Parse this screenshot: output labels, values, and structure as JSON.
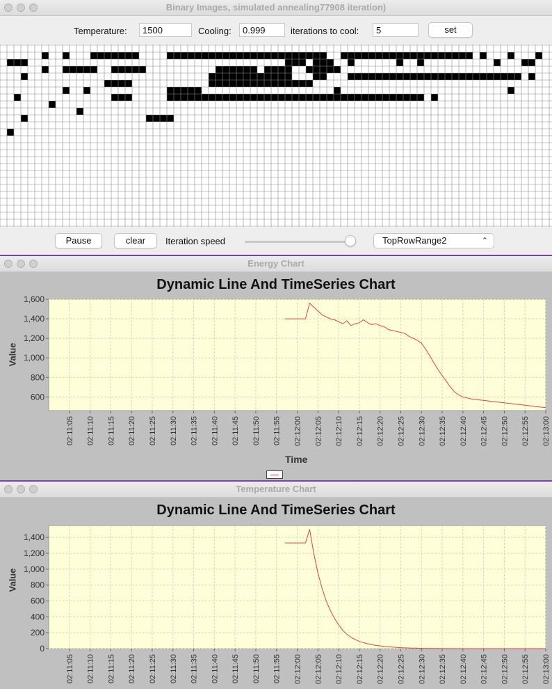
{
  "main_window": {
    "title": "Binary Images, simulated annealing77908 iteration)",
    "temperature_label": "Temperature:",
    "temperature_value": "1500",
    "cooling_label": "Cooling:",
    "cooling_value": "0.999",
    "iterations_label": "iterations to cool:",
    "iterations_value": "5",
    "set_label": "set",
    "pause_label": "Pause",
    "clear_label": "clear",
    "speed_label": "Iteration speed",
    "speed_level": 0.95,
    "dropdown_value": "TopRowRange2",
    "grid_rows": [
      "000000000000000000000000000000000000000000000000000000000000000000000000000000",
      "000000100100011111110000111111111111111111111110011111111111111111110100010001",
      "011100000000000000000000000000000000000001110111001000000100100000000001000110",
      "000000100111110011111000000000011111101111001111100000000000000000000000000000",
      "000100000000000000000000000000111111111111000110001111111111111111111111111010",
      "000000000000000111100000000000111111111111111000000000000000000000000000000000",
      "000000000100100000000000111110000000000000000000100000000000000000000000010000",
      "001000000000000011100000111111111111111111111111111111111111101000000000000000",
      "000000010000000000000000000000000000000000000000000000000000000000000000000000",
      "000000000001000000000000000000000000000000000000000000000000000000000000000000",
      "000100000000000000000111100000000000000000000000000000000000000000000000000000",
      "000000000000000000000000000000000000000000000000000000000000000000000000000000",
      "010000000000000000000000000000000000000000000000000000000000000000000000000000",
      "000000000000000000000000000000000000000000000000000000000000000000000000000000",
      "000000000000000000000000000000000000000000000000000000000000000000000000000000",
      "000000000000000000000000000000000000000000000000000000000000000000000000000000",
      "000000000000000000000000000000000000000000000000000000000000000000000000000000",
      "000000000000000000000000000000000000000000000000000000000000000000000000000000",
      "000000000000000000000000000000000000000000000000000000000000000000000000000000",
      "000000000000000000000000000000000000000000000000000000000000000000000000000000",
      "000000000000000000000000000000000000000000000000000000000000000000000000000000",
      "000000000000000000000000000000000000000000000000000000000000000000000000000000",
      "000000000000000000000000000000000000000000000000000000000000000000000000000000",
      "000000000000000000000000000000000000000000000000000000000000000000000000000000",
      "000000000000000000000000000000000000000000000000000000000000000000000000000000",
      "000000000000000000000000000000000000000000000000000000000000000000000000000000"
    ]
  },
  "energy_window": {
    "title": "Energy Chart",
    "chart_data": {
      "type": "line",
      "title": "Dynamic Line And TimeSeries Chart",
      "ylabel": "Value",
      "xlabel": "Time",
      "ylim": [
        460,
        1600
      ],
      "yticks": [
        600,
        800,
        1000,
        1200,
        1400,
        1600
      ],
      "ytick_labels": [
        "600",
        "800",
        "1,000",
        "1,200",
        "1,400",
        "1,600"
      ],
      "xticks": [
        "02:11:05",
        "02:11:10",
        "02:11:15",
        "02:11:20",
        "02:11:25",
        "02:11:30",
        "02:11:35",
        "02:11:40",
        "02:11:45",
        "02:11:50",
        "02:11:55",
        "02:12:00",
        "02:12:05",
        "02:12:10",
        "02:12:15",
        "02:12:20",
        "02:12:25",
        "02:12:30",
        "02:12:35",
        "02:12:40",
        "02:12:45",
        "02:12:50",
        "02:12:55",
        "02:13:00"
      ],
      "xlim_seconds_after_tick0": [
        -5,
        115
      ],
      "series": [
        {
          "color": "#e8413c",
          "x": [
            52,
            53,
            54,
            55,
            56,
            57,
            58,
            59,
            60,
            61,
            62,
            63,
            64,
            65,
            66,
            67,
            68,
            69,
            70,
            71,
            72,
            73,
            74,
            75,
            76,
            77,
            78,
            79,
            80,
            81,
            82,
            83,
            84,
            85,
            86,
            87,
            88,
            89,
            90,
            91,
            92,
            93,
            94,
            95,
            96,
            97,
            98,
            99,
            100,
            101,
            102,
            103,
            104,
            105,
            106,
            107,
            108,
            109,
            110,
            111,
            112,
            113,
            114,
            115
          ],
          "values": [
            1400,
            1400,
            1400,
            1400,
            1400,
            1400,
            1560,
            1520,
            1480,
            1440,
            1420,
            1400,
            1390,
            1370,
            1350,
            1380,
            1330,
            1350,
            1360,
            1390,
            1360,
            1340,
            1350,
            1330,
            1320,
            1290,
            1280,
            1270,
            1260,
            1250,
            1220,
            1200,
            1180,
            1150,
            1090,
            1020,
            950,
            880,
            820,
            760,
            700,
            650,
            620,
            600,
            590,
            580,
            575,
            570,
            565,
            560,
            555,
            550,
            545,
            540,
            535,
            530,
            525,
            520,
            515,
            510,
            505,
            500,
            495,
            490
          ]
        }
      ]
    },
    "legend_color": "#e8413c"
  },
  "temperature_window": {
    "title": "Temperature Chart",
    "chart_data": {
      "type": "line",
      "title": "Dynamic Line And TimeSeries Chart",
      "ylabel": "Value",
      "ylim": [
        0,
        1550
      ],
      "yticks": [
        0,
        200,
        400,
        600,
        800,
        1000,
        1200,
        1400
      ],
      "ytick_labels": [
        "0",
        "200",
        "400",
        "600",
        "800",
        "1,000",
        "1,200",
        "1,400"
      ],
      "xticks": [
        "02:11:05",
        "02:11:10",
        "02:11:15",
        "02:11:20",
        "02:11:25",
        "02:11:30",
        "02:11:35",
        "02:11:40",
        "02:11:45",
        "02:11:50",
        "02:11:55",
        "02:12:00",
        "02:12:05",
        "02:12:10",
        "02:12:15",
        "02:12:20",
        "02:12:25",
        "02:12:30",
        "02:12:35",
        "02:12:40",
        "02:12:45",
        "02:12:50",
        "02:12:55",
        "02:13:00"
      ],
      "xlim_seconds_after_tick0": [
        -5,
        115
      ],
      "series": [
        {
          "color": "#e8413c",
          "x": [
            52,
            53,
            54,
            55,
            56,
            57,
            58,
            59,
            60,
            61,
            62,
            63,
            64,
            65,
            66,
            67,
            68,
            70,
            72,
            74,
            76,
            78,
            80,
            82,
            84,
            86,
            88,
            90,
            95,
            100,
            105,
            110,
            115
          ],
          "values": [
            1330,
            1330,
            1330,
            1330,
            1330,
            1330,
            1500,
            1200,
            950,
            760,
            600,
            480,
            380,
            300,
            230,
            180,
            140,
            90,
            60,
            40,
            28,
            18,
            12,
            8,
            5,
            3,
            2,
            1,
            0,
            0,
            0,
            0,
            0
          ]
        }
      ]
    }
  }
}
